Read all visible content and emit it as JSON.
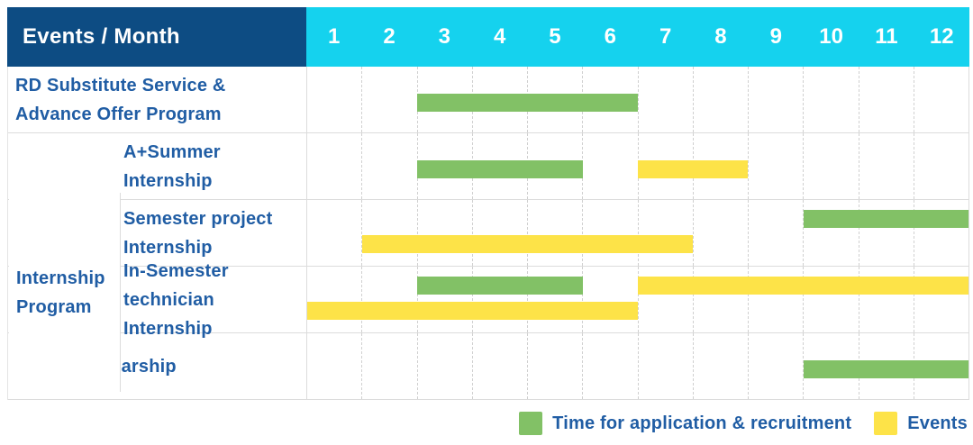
{
  "table": {
    "corner_label": "Events / Month",
    "months": [
      "1",
      "2",
      "3",
      "4",
      "5",
      "6",
      "7",
      "8",
      "9",
      "10",
      "11",
      "12"
    ],
    "group": {
      "label": "Internship Program",
      "lines": [
        "Internship",
        "Program"
      ]
    },
    "rows": [
      {
        "label": "RD Substitute Service & Advance Offer Program",
        "lines": [
          "RD Substitute Service &",
          "Advance Offer Program"
        ],
        "group": false,
        "lanes": [
          [
            {
              "kind": "green",
              "start": 3,
              "end": 6
            }
          ]
        ]
      },
      {
        "label": "A+Summer Internship",
        "lines": [
          "A+Summer",
          "Internship"
        ],
        "group": true,
        "lanes": [
          [
            {
              "kind": "green",
              "start": 3,
              "end": 5
            },
            {
              "kind": "yellow",
              "start": 7,
              "end": 8
            }
          ]
        ]
      },
      {
        "label": "Semester project Internship",
        "lines": [
          "Semester project",
          "Internship"
        ],
        "group": true,
        "lanes": [
          [
            {
              "kind": "green",
              "start": 10,
              "end": 12
            }
          ],
          [
            {
              "kind": "yellow",
              "start": 2,
              "end": 7
            }
          ]
        ]
      },
      {
        "label": "In-Semester technician Internship",
        "lines": [
          "In-Semester",
          "technician Internship"
        ],
        "group": true,
        "lanes": [
          [
            {
              "kind": "green",
              "start": 3,
              "end": 5
            },
            {
              "kind": "yellow",
              "start": 7,
              "end": 12
            }
          ],
          [
            {
              "kind": "yellow",
              "start": 1,
              "end": 6
            }
          ]
        ]
      },
      {
        "label": "Talent scholarship",
        "lines": [
          "Talent scholarship"
        ],
        "group": false,
        "lanes": [
          [
            {
              "kind": "green",
              "start": 10,
              "end": 12
            }
          ]
        ]
      }
    ]
  },
  "legend": {
    "items": [
      {
        "label": "Time for application & recruitment",
        "color_key": "green"
      },
      {
        "label": "Events",
        "color_key": "yellow"
      }
    ]
  },
  "colors": {
    "header_bg": "#0d4c83",
    "months_bg": "#15d2ee",
    "header_text": "#ffffff",
    "green": "#82c166",
    "yellow": "#fde348",
    "label_text": "#205da4",
    "grid_solid": "#dcdcdc",
    "grid_dashed": "#d0d0d0"
  },
  "chart_data": {
    "type": "gantt",
    "title": "Events / Month",
    "x_unit": "month",
    "x_range": [
      1,
      12
    ],
    "x_ticks": [
      1,
      2,
      3,
      4,
      5,
      6,
      7,
      8,
      9,
      10,
      11,
      12
    ],
    "categories": [
      "RD Substitute Service & Advance Offer Program",
      "Internship Program / A+Summer Internship",
      "Internship Program / Semester project Internship",
      "Internship Program / In-Semester technician Internship",
      "Talent scholarship"
    ],
    "legend_position": "bottom-right",
    "series": [
      {
        "name": "Time for application & recruitment",
        "color": "#82c166",
        "spans": [
          {
            "row": "RD Substitute Service & Advance Offer Program",
            "start_month": 3,
            "end_month": 6
          },
          {
            "row": "Internship Program / A+Summer Internship",
            "start_month": 3,
            "end_month": 5
          },
          {
            "row": "Internship Program / Semester project Internship",
            "start_month": 10,
            "end_month": 12
          },
          {
            "row": "Internship Program / In-Semester technician Internship",
            "start_month": 3,
            "end_month": 5
          },
          {
            "row": "Talent scholarship",
            "start_month": 10,
            "end_month": 12
          }
        ]
      },
      {
        "name": "Events",
        "color": "#fde348",
        "spans": [
          {
            "row": "Internship Program / A+Summer Internship",
            "start_month": 7,
            "end_month": 8
          },
          {
            "row": "Internship Program / Semester project Internship",
            "start_month": 2,
            "end_month": 7
          },
          {
            "row": "Internship Program / In-Semester technician Internship",
            "start_month": 7,
            "end_month": 12
          },
          {
            "row": "Internship Program / In-Semester technician Internship",
            "start_month": 1,
            "end_month": 6
          }
        ]
      }
    ]
  }
}
